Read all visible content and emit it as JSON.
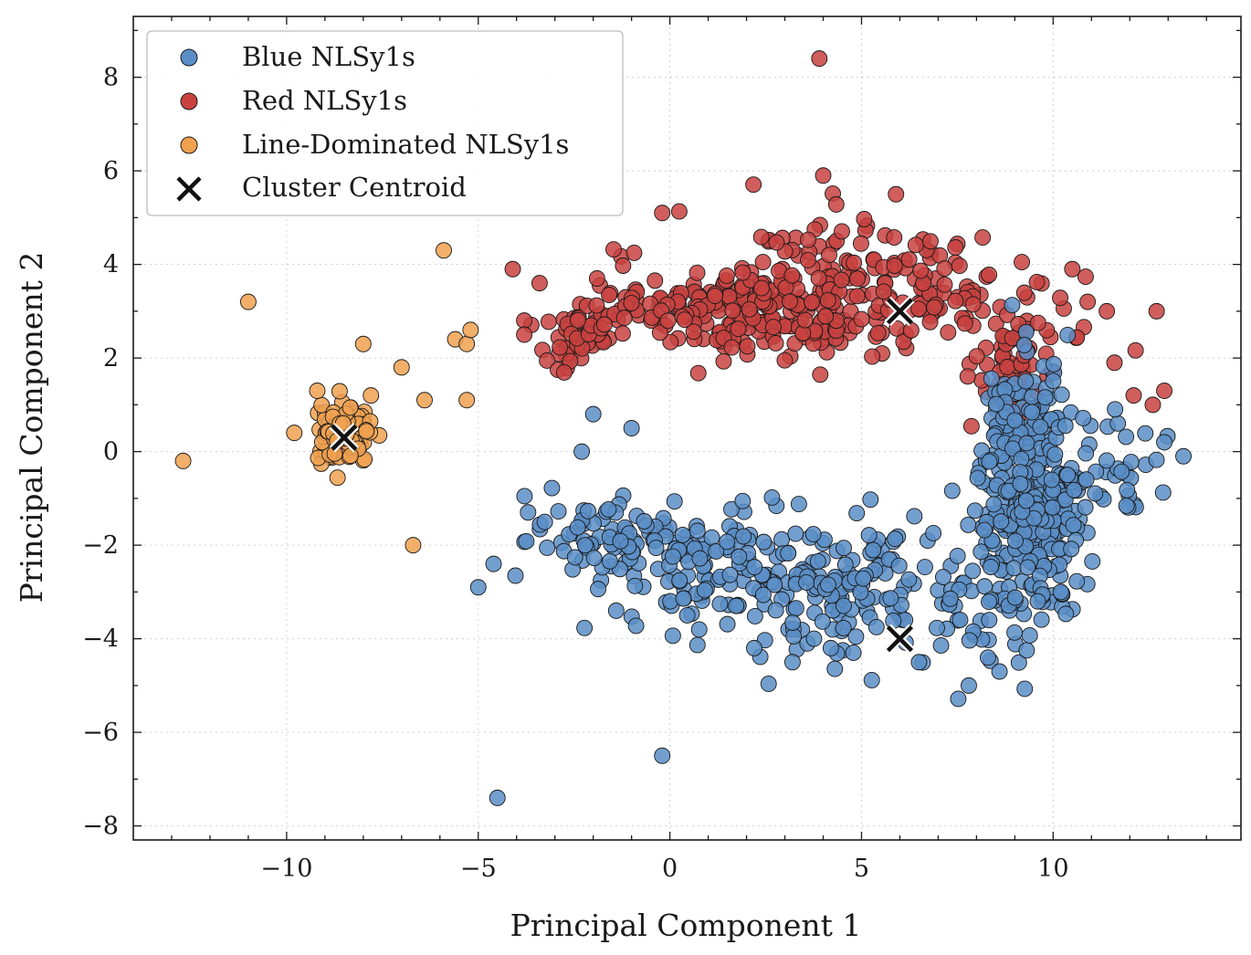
{
  "chart_data": {
    "type": "scatter",
    "xlabel": "Principal Component 1",
    "ylabel": "Principal Component 2",
    "xlim": [
      -14.0,
      14.9
    ],
    "ylim": [
      -8.3,
      9.3
    ],
    "xticks": [
      -10,
      -5,
      0,
      5,
      10
    ],
    "xtick_labels": [
      "−10",
      "−5",
      "0",
      "5",
      "10"
    ],
    "yticks": [
      -8,
      -6,
      -4,
      -2,
      0,
      2,
      4,
      6,
      8
    ],
    "ytick_labels": [
      "−8",
      "−6",
      "−4",
      "−2",
      "0",
      "2",
      "4",
      "6",
      "8"
    ],
    "grid": true,
    "legend_position": "top-left",
    "series": [
      {
        "name": "Blue NLSy1s",
        "color": "#5b8ec7",
        "marker": "circle",
        "clusters": [
          {
            "cx": 9.4,
            "cy": -0.8,
            "sx": 0.7,
            "sy": 1.3,
            "n": 330
          },
          {
            "cx": 4.5,
            "cy": -3.0,
            "sx": 2.0,
            "sy": 0.7,
            "n": 150
          },
          {
            "cx": 1.5,
            "cy": -2.4,
            "sx": 1.7,
            "sy": 0.6,
            "n": 110
          },
          {
            "cx": -1.8,
            "cy": -1.8,
            "sx": 0.9,
            "sy": 0.5,
            "n": 70
          },
          {
            "cx": 8.2,
            "cy": -3.6,
            "sx": 0.8,
            "sy": 0.7,
            "n": 30
          },
          {
            "cx": 11.8,
            "cy": -0.4,
            "sx": 0.9,
            "sy": 0.5,
            "n": 35
          }
        ],
        "points": [
          [
            -4.5,
            -7.4
          ],
          [
            -0.2,
            -6.5
          ],
          [
            -5.0,
            -2.9
          ],
          [
            -4.6,
            -2.4
          ],
          [
            -3.7,
            -1.3
          ],
          [
            -2.0,
            0.8
          ],
          [
            -1.0,
            0.5
          ],
          [
            -2.3,
            0.0
          ],
          [
            -1.4,
            -3.4
          ],
          [
            7.8,
            -5.0
          ],
          [
            9.6,
            -3.2
          ],
          [
            10.2,
            -3.0
          ],
          [
            13.4,
            -0.1
          ],
          [
            12.9,
            0.2
          ],
          [
            2.2,
            -4.2
          ],
          [
            3.2,
            -4.5
          ],
          [
            4.2,
            -4.2
          ],
          [
            6.5,
            -4.5
          ],
          [
            8.6,
            -4.7
          ]
        ]
      },
      {
        "name": "Red NLSy1s",
        "color": "#c8423f",
        "marker": "circle",
        "clusters": [
          {
            "cx": 2.6,
            "cy": 3.1,
            "sx": 1.6,
            "sy": 0.55,
            "n": 230
          },
          {
            "cx": 6.9,
            "cy": 3.4,
            "sx": 1.1,
            "sy": 0.6,
            "n": 80
          },
          {
            "cx": -2.4,
            "cy": 2.4,
            "sx": 0.5,
            "sy": 0.4,
            "n": 50
          },
          {
            "cx": -0.5,
            "cy": 3.2,
            "sx": 0.9,
            "sy": 0.4,
            "n": 40
          },
          {
            "cx": 8.8,
            "cy": 1.6,
            "sx": 0.6,
            "sy": 0.6,
            "n": 45
          },
          {
            "cx": 4.3,
            "cy": 4.6,
            "sx": 1.5,
            "sy": 0.5,
            "n": 35
          },
          {
            "cx": 9.8,
            "cy": 2.7,
            "sx": 0.8,
            "sy": 0.6,
            "n": 25
          }
        ],
        "points": [
          [
            3.9,
            8.4
          ],
          [
            4.0,
            5.9
          ],
          [
            -0.2,
            5.1
          ],
          [
            5.9,
            5.5
          ],
          [
            -4.1,
            3.9
          ],
          [
            -3.4,
            3.6
          ],
          [
            -3.8,
            2.8
          ],
          [
            -3.8,
            2.5
          ],
          [
            -1.9,
            3.7
          ],
          [
            12.7,
            3.0
          ],
          [
            12.9,
            1.3
          ],
          [
            12.1,
            1.2
          ],
          [
            12.6,
            1.0
          ],
          [
            11.6,
            1.9
          ],
          [
            10.9,
            3.2
          ],
          [
            11.4,
            3.0
          ],
          [
            10.5,
            3.9
          ]
        ]
      },
      {
        "name": "Line-Dominated NLSy1s",
        "color": "#f0a150",
        "marker": "circle",
        "clusters": [
          {
            "cx": -8.5,
            "cy": 0.35,
            "sx": 0.35,
            "sy": 0.3,
            "n": 120
          }
        ],
        "points": [
          [
            -12.7,
            -0.2
          ],
          [
            -11.0,
            3.2
          ],
          [
            -5.9,
            4.3
          ],
          [
            -8.0,
            2.3
          ],
          [
            -9.2,
            1.3
          ],
          [
            -7.0,
            1.8
          ],
          [
            -6.4,
            1.1
          ],
          [
            -5.3,
            1.1
          ],
          [
            -5.6,
            2.4
          ],
          [
            -5.3,
            2.3
          ],
          [
            -5.2,
            2.6
          ],
          [
            -6.7,
            -2.0
          ],
          [
            -9.8,
            0.4
          ],
          [
            -7.8,
            1.2
          ]
        ]
      },
      {
        "name": "Cluster Centroid",
        "color": "#000000",
        "marker": "x",
        "points": [
          [
            -8.5,
            0.3
          ],
          [
            6.0,
            3.0
          ],
          [
            6.0,
            -4.0
          ]
        ]
      }
    ]
  }
}
